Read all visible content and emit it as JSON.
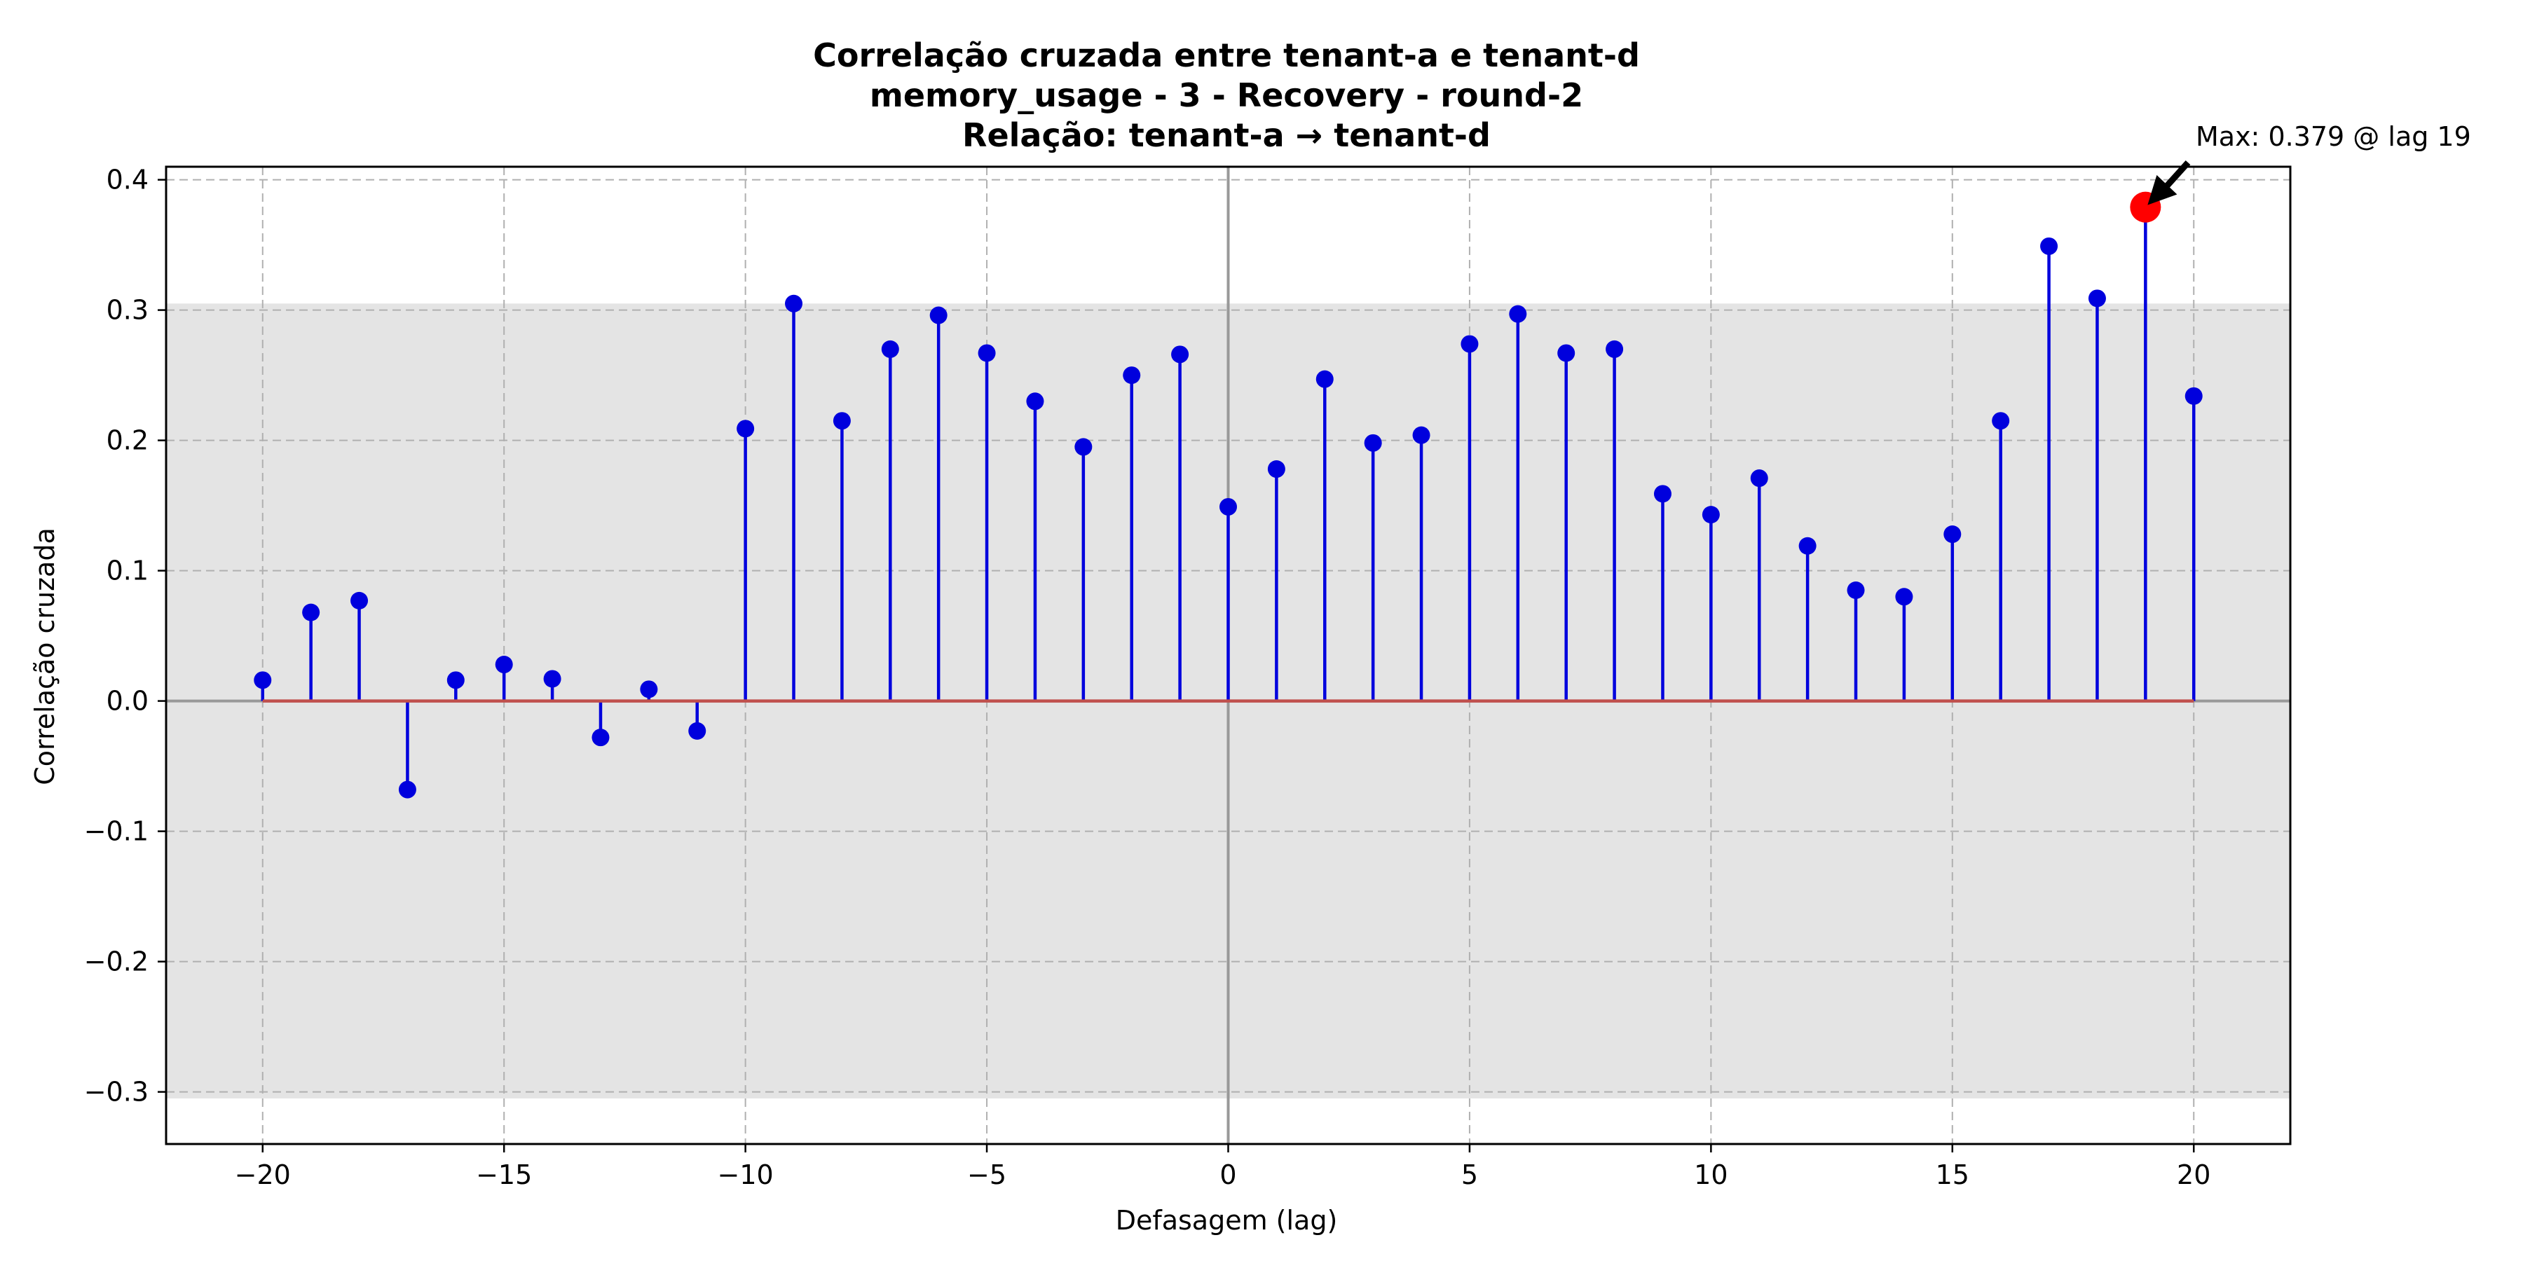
{
  "chart_data": {
    "type": "stem",
    "title_lines": [
      "Correlação cruzada entre tenant-a e tenant-d",
      "memory_usage - 3 - Recovery - round-2",
      "Relação: tenant-a → tenant-d"
    ],
    "xlabel": "Defasagem (lag)",
    "ylabel": "Correlação cruzada",
    "xlim": [
      -22,
      22
    ],
    "ylim": [
      -0.34,
      0.41
    ],
    "xticks": [
      -20,
      -15,
      -10,
      -5,
      0,
      5,
      10,
      15,
      20
    ],
    "xtick_labels": [
      "−20",
      "−15",
      "−10",
      "−5",
      "0",
      "5",
      "10",
      "15",
      "20"
    ],
    "yticks": [
      -0.3,
      -0.2,
      -0.1,
      0.0,
      0.1,
      0.2,
      0.3,
      0.4
    ],
    "ytick_labels": [
      "−0.3",
      "−0.2",
      "−0.1",
      "0.0",
      "0.1",
      "0.2",
      "0.3",
      "0.4"
    ],
    "grid": true,
    "shaded_band": [
      -0.305,
      0.305
    ],
    "x": [
      -20,
      -19,
      -18,
      -17,
      -16,
      -15,
      -14,
      -13,
      -12,
      -11,
      -10,
      -9,
      -8,
      -7,
      -6,
      -5,
      -4,
      -3,
      -2,
      -1,
      0,
      1,
      2,
      3,
      4,
      5,
      6,
      7,
      8,
      9,
      10,
      11,
      12,
      13,
      14,
      15,
      16,
      17,
      18,
      19,
      20
    ],
    "values": [
      0.016,
      0.068,
      0.077,
      -0.068,
      0.016,
      0.028,
      0.017,
      -0.028,
      0.009,
      -0.023,
      0.209,
      0.305,
      0.215,
      0.27,
      0.296,
      0.267,
      0.23,
      0.195,
      0.25,
      0.266,
      0.149,
      0.178,
      0.247,
      0.198,
      0.204,
      0.274,
      0.297,
      0.267,
      0.27,
      0.159,
      0.143,
      0.171,
      0.119,
      0.085,
      0.08,
      0.128,
      0.215,
      0.349,
      0.309,
      0.379,
      0.234
    ],
    "max_point": {
      "lag": 19,
      "value": 0.379
    },
    "annotation": "Max: 0.379 @ lag 19",
    "colors": {
      "stem": "#0000dd",
      "marker": "#0000dd",
      "baseline": "#c0504d",
      "max_marker": "#ff0000",
      "band": "#e4e4e4",
      "grid": "#b0b0b0",
      "zero_line": "#999999"
    }
  }
}
